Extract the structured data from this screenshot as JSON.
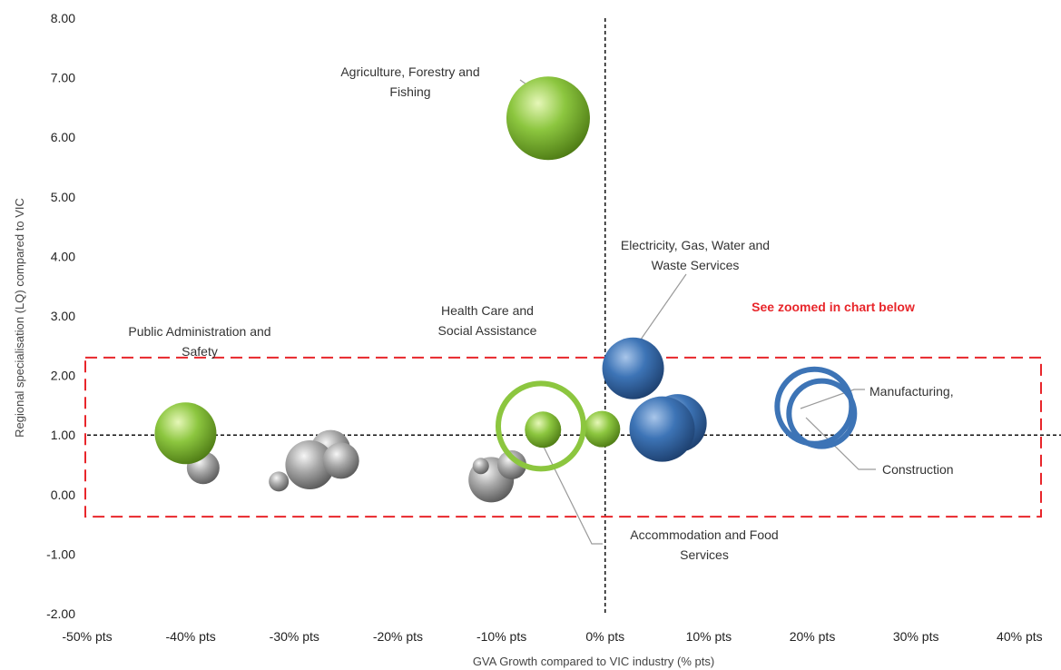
{
  "chart_data": {
    "type": "scatter",
    "title": "",
    "xlabel": "GVA Growth compared to VIC industry (% pts)",
    "ylabel": "Regional specialisation (LQ) compared to VIC",
    "xlim": [
      -50,
      44
    ],
    "ylim": [
      -2,
      8
    ],
    "x_ticks": [
      -50,
      -40,
      -30,
      -20,
      -10,
      0,
      10,
      20,
      30,
      40
    ],
    "x_tick_labels": [
      "-50% pts",
      "-40% pts",
      "-30% pts",
      "-20% pts",
      "-10% pts",
      "0% pts",
      "10% pts",
      "20% pts",
      "30% pts",
      "40% pts"
    ],
    "y_ticks": [
      -2,
      -1,
      0,
      1,
      2,
      3,
      4,
      5,
      6,
      7,
      8
    ],
    "y_tick_labels": [
      "-2.00",
      "-1.00",
      "0.00",
      "1.00",
      "2.00",
      "3.00",
      "4.00",
      "5.00",
      "6.00",
      "7.00",
      "8.00"
    ],
    "grid": false,
    "reference_lines": {
      "x": 0,
      "y": 1
    },
    "colors": {
      "green": "#8cc63f",
      "blue": "#3d74b6",
      "grey": "#a8a8a8",
      "highlight": "#e8262b"
    },
    "points": [
      {
        "x": -5.5,
        "y": 6.32,
        "size": 46,
        "style": "green"
      },
      {
        "x": -40.5,
        "y": 1.03,
        "size": 34,
        "style": "green"
      },
      {
        "x": -6.0,
        "y": 1.09,
        "size": 20,
        "style": "green"
      },
      {
        "x": -0.3,
        "y": 1.1,
        "size": 20,
        "style": "green"
      },
      {
        "x": 2.7,
        "y": 2.12,
        "size": 34,
        "style": "blue"
      },
      {
        "x": 7.0,
        "y": 1.2,
        "size": 32,
        "style": "blue"
      },
      {
        "x": 5.5,
        "y": 1.1,
        "size": 36,
        "style": "blue"
      },
      {
        "x": -6.2,
        "y": 1.15,
        "size": 47,
        "style": "green-ring"
      },
      {
        "x": 20.2,
        "y": 1.48,
        "size": 41,
        "style": "blue-ring"
      },
      {
        "x": 20.9,
        "y": 1.36,
        "size": 36,
        "style": "blue-ring"
      },
      {
        "x": -38.8,
        "y": 0.45,
        "size": 18,
        "style": "grey"
      },
      {
        "x": -31.5,
        "y": 0.22,
        "size": 11,
        "style": "grey"
      },
      {
        "x": -26.5,
        "y": 0.75,
        "size": 22,
        "style": "grey"
      },
      {
        "x": -28.5,
        "y": 0.5,
        "size": 27,
        "style": "grey"
      },
      {
        "x": -25.5,
        "y": 0.57,
        "size": 20,
        "style": "grey"
      },
      {
        "x": -11.0,
        "y": 0.25,
        "size": 25,
        "style": "grey"
      },
      {
        "x": -9.0,
        "y": 0.5,
        "size": 16,
        "style": "grey"
      },
      {
        "x": -12.0,
        "y": 0.48,
        "size": 9,
        "style": "grey"
      }
    ],
    "annotations": [
      {
        "lines": [
          "Agriculture, Forestry and",
          "Fishing"
        ],
        "target": [
          -5.5,
          6.32
        ]
      },
      {
        "lines": [
          "Public Administration and",
          "Safety"
        ],
        "target": null
      },
      {
        "lines": [
          "Health Care and",
          "Social Assistance"
        ],
        "target": null
      },
      {
        "lines": [
          "Electricity, Gas, Water and",
          "Waste Services"
        ],
        "target": [
          2.7,
          2.12
        ]
      },
      {
        "lines": [
          "Accommodation and Food",
          "Services"
        ],
        "target": [
          -6.0,
          1.09
        ]
      },
      {
        "lines": [
          "Manufacturing,"
        ],
        "target": [
          20.2,
          1.48
        ]
      },
      {
        "lines": [
          "Construction"
        ],
        "target": [
          20.9,
          1.36
        ]
      }
    ],
    "highlight_box": {
      "x_range": [
        -50,
        44
      ],
      "y_range": [
        -0.37,
        2.3
      ],
      "label": "See zoomed in chart below"
    }
  }
}
